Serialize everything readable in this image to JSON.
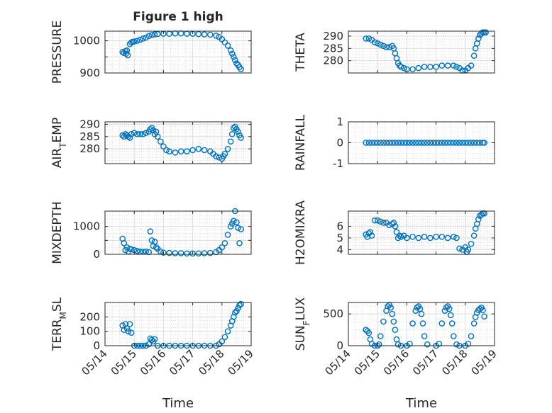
{
  "figure_title": "Figure 1 high",
  "accent_color": "#0072BD",
  "chart_data": [
    {
      "type": "scatter",
      "ylabel": "PRESSURE",
      "ylim": [
        900,
        1030
      ],
      "yticks": [
        900,
        950,
        1000
      ],
      "ytick_labels": [
        "900",
        "",
        "1000"
      ],
      "xlim": [
        0,
        5
      ],
      "grid": "on",
      "x": [
        0.6,
        0.65,
        0.7,
        0.72,
        0.75,
        0.78,
        0.85,
        0.9,
        0.95,
        1.0,
        1.1,
        1.2,
        1.3,
        1.4,
        1.5,
        1.6,
        1.7,
        1.8,
        2.0,
        2.2,
        2.4,
        2.6,
        2.8,
        3.0,
        3.2,
        3.4,
        3.6,
        3.8,
        3.9,
        4.0,
        4.1,
        4.2,
        4.3,
        4.35,
        4.4,
        4.45,
        4.5,
        4.55,
        4.6,
        4.65
      ],
      "y": [
        965,
        962,
        968,
        960,
        970,
        955,
        990,
        995,
        997,
        998,
        1000,
        1003,
        1007,
        1010,
        1015,
        1018,
        1020,
        1021,
        1022,
        1022,
        1023,
        1023,
        1022,
        1022,
        1021,
        1020,
        1019,
        1016,
        1012,
        1005,
        995,
        985,
        970,
        960,
        950,
        940,
        930,
        925,
        918,
        912
      ]
    },
    {
      "type": "scatter",
      "ylabel": "THETA",
      "ylim": [
        275,
        292
      ],
      "yticks": [
        280,
        285,
        290
      ],
      "ytick_labels": [
        "280",
        "285",
        "290"
      ],
      "xlim": [
        0,
        5
      ],
      "grid": "on",
      "x": [
        0.6,
        0.7,
        0.8,
        0.9,
        1.0,
        1.1,
        1.2,
        1.3,
        1.4,
        1.5,
        1.55,
        1.6,
        1.65,
        1.7,
        1.75,
        1.8,
        1.9,
        2.0,
        2.2,
        2.4,
        2.6,
        2.8,
        3.0,
        3.2,
        3.4,
        3.6,
        3.7,
        3.8,
        3.9,
        4.0,
        4.1,
        4.2,
        4.3,
        4.35,
        4.4,
        4.45,
        4.5,
        4.55,
        4.6,
        4.65,
        4.7
      ],
      "y": [
        289,
        289,
        288.5,
        287.5,
        287,
        286.5,
        286,
        285.5,
        285.5,
        286,
        285,
        283,
        281,
        279,
        278,
        277.5,
        277,
        276.5,
        276.5,
        277,
        277.5,
        277.5,
        277.5,
        278,
        278,
        278,
        277.5,
        277,
        276,
        276,
        277,
        278,
        282,
        285,
        287,
        289,
        290.5,
        291,
        291.5,
        291.5,
        291.5
      ]
    },
    {
      "type": "scatter",
      "ylabel": "AIR_TEMP",
      "ylim": [
        274,
        291
      ],
      "yticks": [
        280,
        285,
        290
      ],
      "ytick_labels": [
        "280",
        "285",
        "290"
      ],
      "xlim": [
        0,
        5
      ],
      "grid": "on",
      "x": [
        0.6,
        0.65,
        0.7,
        0.75,
        0.8,
        0.85,
        0.9,
        1.0,
        1.1,
        1.2,
        1.3,
        1.4,
        1.5,
        1.55,
        1.6,
        1.65,
        1.7,
        1.75,
        1.8,
        1.9,
        2.0,
        2.1,
        2.2,
        2.4,
        2.6,
        2.8,
        3.0,
        3.2,
        3.4,
        3.6,
        3.7,
        3.8,
        3.9,
        4.0,
        4.05,
        4.1,
        4.2,
        4.3,
        4.35,
        4.4,
        4.45,
        4.5,
        4.55,
        4.6,
        4.65
      ],
      "y": [
        285.5,
        285,
        286,
        285.5,
        285,
        284.5,
        286,
        286.5,
        286,
        286,
        286,
        286.5,
        287,
        288,
        288.5,
        287.5,
        286,
        287,
        285,
        283,
        281,
        279.5,
        279,
        278.5,
        279,
        279,
        279.5,
        280,
        279.5,
        279,
        278,
        277,
        276.5,
        276,
        277,
        278,
        280,
        283,
        286,
        288.5,
        289,
        288,
        287,
        285.5,
        284.5
      ]
    },
    {
      "type": "scatter",
      "ylabel": "RAINFALL",
      "ylim": [
        -1,
        1
      ],
      "yticks": [
        -1,
        0,
        1
      ],
      "ytick_labels": [
        "-1",
        "0",
        "1"
      ],
      "xlim": [
        0,
        5
      ],
      "grid": "on",
      "x": [
        0.6,
        0.7,
        0.8,
        0.9,
        1.0,
        1.1,
        1.2,
        1.3,
        1.4,
        1.5,
        1.6,
        1.7,
        1.8,
        1.9,
        2.0,
        2.1,
        2.2,
        2.3,
        2.4,
        2.5,
        2.6,
        2.7,
        2.8,
        2.9,
        3.0,
        3.1,
        3.2,
        3.3,
        3.4,
        3.5,
        3.6,
        3.7,
        3.8,
        3.9,
        4.0,
        4.1,
        4.2,
        4.3,
        4.4,
        4.5,
        4.6,
        4.65
      ],
      "y": [
        0,
        0,
        0,
        0,
        0,
        0,
        0,
        0,
        0,
        0,
        0,
        0,
        0,
        0,
        0,
        0,
        0,
        0,
        0,
        0,
        0,
        0,
        0,
        0,
        0,
        0,
        0,
        0,
        0,
        0,
        0,
        0,
        0,
        0,
        0,
        0,
        0,
        0,
        0,
        0,
        0,
        0
      ]
    },
    {
      "type": "scatter",
      "ylabel": "MIXDEPTH",
      "ylim": [
        0,
        1550
      ],
      "yticks": [
        0,
        500,
        1000
      ],
      "ytick_labels": [
        "0",
        "",
        "1000"
      ],
      "xlim": [
        0,
        5
      ],
      "grid": "on",
      "x": [
        0.6,
        0.65,
        0.7,
        0.75,
        0.8,
        0.85,
        0.9,
        1.0,
        1.1,
        1.2,
        1.3,
        1.4,
        1.5,
        1.55,
        1.6,
        1.65,
        1.7,
        1.75,
        1.8,
        1.9,
        2.0,
        2.2,
        2.4,
        2.6,
        2.8,
        3.0,
        3.2,
        3.4,
        3.6,
        3.8,
        3.9,
        4.0,
        4.1,
        4.2,
        4.3,
        4.35,
        4.4,
        4.45,
        4.5,
        4.55,
        4.6,
        4.65
      ],
      "y": [
        560,
        400,
        150,
        250,
        100,
        200,
        180,
        150,
        120,
        100,
        90,
        100,
        80,
        820,
        500,
        300,
        450,
        250,
        200,
        100,
        60,
        50,
        40,
        40,
        30,
        30,
        30,
        40,
        50,
        80,
        150,
        250,
        400,
        700,
        1000,
        1100,
        1200,
        1550,
        1150,
        950,
        400,
        900
      ]
    },
    {
      "type": "scatter",
      "ylabel": "H2OMIXRA",
      "ylim": [
        3.6,
        7.3
      ],
      "yticks": [
        4,
        5,
        6
      ],
      "ytick_labels": [
        "4",
        "5",
        "6"
      ],
      "xlim": [
        0,
        5
      ],
      "grid": "on",
      "x": [
        0.6,
        0.65,
        0.7,
        0.75,
        0.8,
        0.9,
        1.0,
        1.1,
        1.2,
        1.3,
        1.4,
        1.5,
        1.55,
        1.6,
        1.65,
        1.7,
        1.75,
        1.8,
        1.9,
        2.0,
        2.2,
        2.4,
        2.6,
        2.8,
        3.0,
        3.2,
        3.4,
        3.6,
        3.7,
        3.8,
        3.9,
        4.0,
        4.05,
        4.1,
        4.2,
        4.3,
        4.35,
        4.4,
        4.45,
        4.5,
        4.55,
        4.6,
        4.65
      ],
      "y": [
        5.3,
        5.1,
        5.4,
        5.5,
        5.2,
        6.5,
        6.5,
        6.4,
        6.3,
        6.3,
        6.1,
        6.2,
        6.3,
        6.0,
        5.5,
        5.0,
        5.2,
        5.1,
        5.2,
        5.0,
        5.1,
        5.0,
        5.1,
        5.0,
        5.1,
        5.1,
        5.0,
        5.1,
        5.0,
        4.1,
        4.0,
        4.2,
        3.8,
        4.0,
        4.5,
        5.2,
        5.8,
        6.2,
        6.6,
        6.9,
        7.0,
        7.1,
        7.1
      ]
    },
    {
      "type": "scatter",
      "ylabel": "TERR_MSL",
      "ylim": [
        0,
        300
      ],
      "yticks": [
        0,
        100,
        200
      ],
      "ytick_labels": [
        "0",
        "100",
        "200"
      ],
      "xlim": [
        0,
        5
      ],
      "grid": "on",
      "x": [
        0.6,
        0.65,
        0.7,
        0.75,
        0.8,
        0.85,
        0.9,
        1.0,
        1.1,
        1.2,
        1.3,
        1.4,
        1.5,
        1.55,
        1.6,
        1.65,
        1.7,
        1.8,
        2.0,
        2.2,
        2.4,
        2.6,
        2.8,
        3.0,
        3.2,
        3.4,
        3.6,
        3.8,
        3.9,
        4.0,
        4.1,
        4.2,
        4.3,
        4.35,
        4.4,
        4.45,
        4.5,
        4.55,
        4.6,
        4.65
      ],
      "y": [
        140,
        110,
        150,
        120,
        100,
        150,
        90,
        0,
        0,
        0,
        0,
        0,
        10,
        50,
        40,
        30,
        45,
        0,
        0,
        0,
        0,
        0,
        0,
        0,
        0,
        0,
        0,
        0,
        10,
        30,
        60,
        100,
        140,
        170,
        200,
        230,
        240,
        260,
        280,
        290
      ]
    },
    {
      "type": "scatter",
      "ylabel": "SUN_FLUX",
      "ylim": [
        0,
        680
      ],
      "yticks": [
        0,
        500
      ],
      "ytick_labels": [
        "0",
        "500"
      ],
      "xlim": [
        0,
        5
      ],
      "grid": "on",
      "x": [
        0.6,
        0.65,
        0.7,
        0.75,
        0.8,
        0.9,
        1.0,
        1.05,
        1.1,
        1.2,
        1.3,
        1.35,
        1.4,
        1.45,
        1.5,
        1.55,
        1.6,
        1.65,
        1.7,
        1.8,
        2.0,
        2.1,
        2.2,
        2.3,
        2.35,
        2.4,
        2.45,
        2.5,
        2.55,
        2.6,
        2.7,
        3.0,
        3.1,
        3.2,
        3.3,
        3.35,
        3.4,
        3.45,
        3.5,
        3.55,
        3.6,
        3.7,
        3.8,
        4.0,
        4.1,
        4.2,
        4.3,
        4.35,
        4.4,
        4.45,
        4.5,
        4.55,
        4.6,
        4.65
      ],
      "y": [
        250,
        230,
        200,
        100,
        30,
        0,
        0,
        20,
        150,
        380,
        550,
        620,
        640,
        600,
        500,
        380,
        250,
        100,
        20,
        0,
        0,
        30,
        350,
        550,
        600,
        620,
        580,
        500,
        350,
        150,
        20,
        0,
        30,
        350,
        550,
        600,
        620,
        580,
        480,
        350,
        150,
        20,
        0,
        0,
        30,
        150,
        350,
        450,
        520,
        560,
        580,
        600,
        560,
        460
      ]
    }
  ],
  "x_tick_labels": [
    "05/14",
    "05/15",
    "05/16",
    "05/17",
    "05/18",
    "05/19"
  ],
  "x_label": "Time"
}
